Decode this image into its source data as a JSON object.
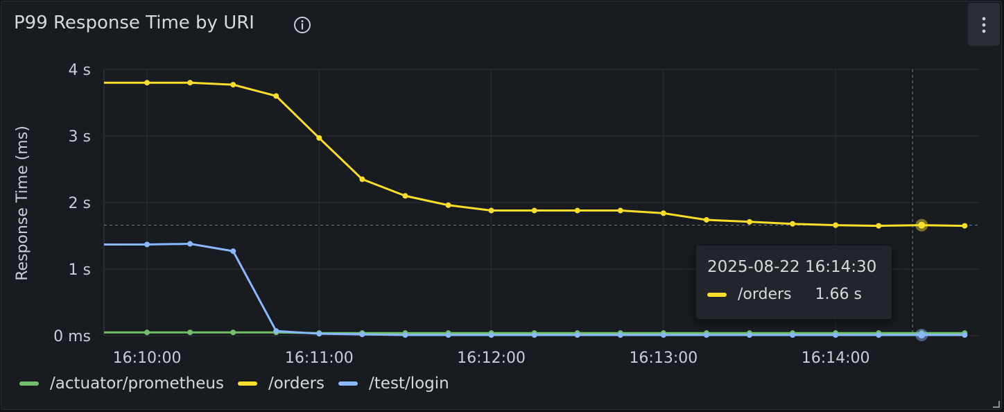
{
  "panel": {
    "title": "P99 Response Time by URI",
    "info_icon": "info-circle-icon",
    "menu_icon": "kebab-menu-icon"
  },
  "tooltip": {
    "time": "2025-08-22 16:14:30",
    "series": "/orders",
    "value": "1.66 s",
    "color": "#fade2a"
  },
  "colors": {
    "background": "#181b1f",
    "grid": "#2c2f35",
    "text": "#ccccdc"
  },
  "chart_data": {
    "type": "line",
    "ylabel": "Response Time (ms)",
    "ylim": [
      0,
      4
    ],
    "yticks": [
      {
        "value": 0,
        "label": "0 ms"
      },
      {
        "value": 1,
        "label": "1 s"
      },
      {
        "value": 2,
        "label": "2 s"
      },
      {
        "value": 3,
        "label": "3 s"
      },
      {
        "value": 4,
        "label": "4 s"
      }
    ],
    "x_range": [
      "16:09:45",
      "16:14:50"
    ],
    "xticks": [
      "16:10:00",
      "16:11:00",
      "16:12:00",
      "16:13:00",
      "16:14:00"
    ],
    "x": [
      "16:10:00",
      "16:10:15",
      "16:10:30",
      "16:10:45",
      "16:11:00",
      "16:11:15",
      "16:11:30",
      "16:11:45",
      "16:12:00",
      "16:12:15",
      "16:12:30",
      "16:12:45",
      "16:13:00",
      "16:13:15",
      "16:13:30",
      "16:13:45",
      "16:14:00",
      "16:14:15",
      "16:14:30",
      "16:14:45"
    ],
    "grid": true,
    "legend_position": "bottom-left",
    "series": [
      {
        "name": "/actuator/prometheus",
        "color": "#73bf69",
        "values": [
          0.05,
          0.05,
          0.05,
          0.05,
          0.04,
          0.04,
          0.04,
          0.04,
          0.04,
          0.04,
          0.04,
          0.04,
          0.04,
          0.04,
          0.04,
          0.04,
          0.04,
          0.04,
          0.04,
          0.04
        ]
      },
      {
        "name": "/orders",
        "color": "#fade2a",
        "values": [
          3.8,
          3.8,
          3.77,
          3.6,
          2.97,
          2.35,
          2.1,
          1.96,
          1.88,
          1.88,
          1.88,
          1.88,
          1.84,
          1.74,
          1.71,
          1.68,
          1.66,
          1.65,
          1.66,
          1.65
        ]
      },
      {
        "name": "/test/login",
        "color": "#8ab8ff",
        "values": [
          1.37,
          1.38,
          1.27,
          0.07,
          0.03,
          0.02,
          0.01,
          0.01,
          0.01,
          0.01,
          0.01,
          0.01,
          0.01,
          0.01,
          0.01,
          0.01,
          0.01,
          0.01,
          0.01,
          0.01
        ]
      }
    ],
    "hover": {
      "x": "16:14:30",
      "value": 1.66
    }
  }
}
